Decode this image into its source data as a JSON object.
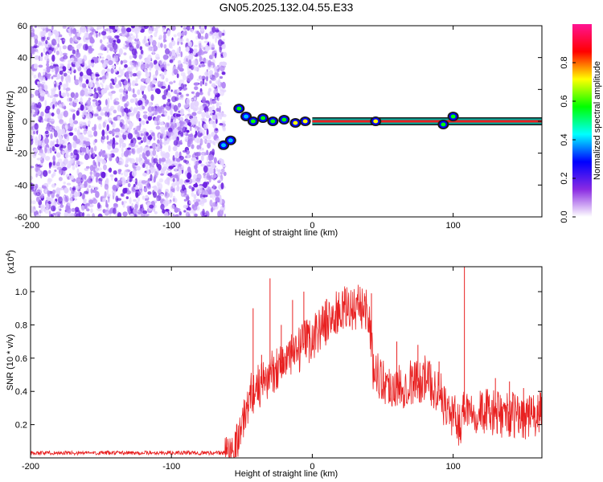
{
  "title": "GN05.2025.132.04.55.E33",
  "chart_data": [
    {
      "type": "heatmap",
      "xlabel": "Height of straight line (km)",
      "ylabel": "Frequency (Hz)",
      "xlim": [
        -200,
        163
      ],
      "ylim": [
        -60,
        60
      ],
      "xticks": [
        -200,
        -100,
        0,
        100
      ],
      "xtick_labels": [
        "-200",
        "-100",
        "0",
        "100"
      ],
      "yticks": [
        60,
        40,
        20,
        0,
        -20,
        -40,
        -60
      ],
      "ytick_labels": [
        "60",
        "40",
        "20",
        "0",
        "-20",
        "-40",
        "-60"
      ],
      "noise_region_x": [
        -200,
        -62
      ],
      "signal_line": {
        "frequency": 0,
        "x_start": 0,
        "x_end": 163
      },
      "signal_blobs": [
        {
          "x": -63,
          "y": -15,
          "amp": 0.4
        },
        {
          "x": -58,
          "y": -12,
          "amp": 0.45
        },
        {
          "x": -52,
          "y": 8,
          "amp": 0.5
        },
        {
          "x": -47,
          "y": 3,
          "amp": 0.45
        },
        {
          "x": -42,
          "y": 0,
          "amp": 0.6
        },
        {
          "x": -35,
          "y": 2,
          "amp": 0.55
        },
        {
          "x": -28,
          "y": 0,
          "amp": 0.6
        },
        {
          "x": -20,
          "y": 1,
          "amp": 0.65
        },
        {
          "x": -12,
          "y": -1,
          "amp": 0.7
        },
        {
          "x": -5,
          "y": 0,
          "amp": 0.75
        },
        {
          "x": 45,
          "y": 0,
          "amp": 0.7
        },
        {
          "x": 93,
          "y": -2,
          "amp": 0.5
        },
        {
          "x": 100,
          "y": 3,
          "amp": 0.55
        }
      ],
      "colorbar": {
        "label": "Normalized spectral amplitude",
        "ticks": [
          0.0,
          0.2,
          0.4,
          0.6,
          0.8
        ],
        "tick_labels": [
          "0.0",
          "0.2",
          "0.4",
          "0.6",
          "0.8"
        ],
        "range": [
          0,
          1
        ],
        "colormap": [
          "#ffffff",
          "#8a2be2",
          "#0000ff",
          "#00ffff",
          "#00ff00",
          "#ffff00",
          "#ff0000",
          "#ff1493"
        ]
      }
    },
    {
      "type": "line",
      "xlabel": "Height of straight line (km)",
      "ylabel": "SNR (10 * v/v)",
      "yscale_label": "(x10",
      "yscale_exp": "4",
      "yscale_close": ")",
      "xlim": [
        -200,
        163
      ],
      "ylim": [
        0.0,
        1.15
      ],
      "xticks": [
        -200,
        -100,
        0,
        100
      ],
      "xtick_labels": [
        "-200",
        "-100",
        "0",
        "100"
      ],
      "yticks": [
        0.2,
        0.4,
        0.6,
        0.8,
        1.0
      ],
      "ytick_labels": [
        "0.2",
        "0.4",
        "0.6",
        "0.8",
        "1.0"
      ],
      "series": [
        {
          "color": "#e82020",
          "x": [
            -200,
            -150,
            -100,
            -62,
            -55,
            -48,
            -44,
            -40,
            -36,
            -32,
            -28,
            -24,
            -20,
            -16,
            -12,
            -8,
            -4,
            0,
            5,
            10,
            15,
            20,
            25,
            30,
            35,
            40,
            43,
            46,
            50,
            55,
            60,
            65,
            70,
            75,
            80,
            85,
            90,
            95,
            100,
            105,
            108,
            112,
            118,
            125,
            132,
            140,
            148,
            156,
            163
          ],
          "values": [
            0.03,
            0.03,
            0.03,
            0.03,
            0.06,
            0.25,
            0.38,
            0.42,
            0.44,
            0.48,
            0.52,
            0.56,
            0.58,
            0.6,
            0.62,
            0.66,
            0.7,
            0.72,
            0.78,
            0.82,
            0.85,
            0.88,
            0.9,
            0.9,
            0.91,
            0.89,
            0.55,
            0.52,
            0.46,
            0.44,
            0.42,
            0.44,
            0.46,
            0.46,
            0.48,
            0.44,
            0.4,
            0.3,
            0.25,
            0.2,
            0.32,
            0.3,
            0.28,
            0.28,
            0.26,
            0.26,
            0.25,
            0.25,
            0.26
          ],
          "spikes": [
            {
              "x": -42,
              "y": 0.9
            },
            {
              "x": -36,
              "y": 0.62
            },
            {
              "x": -30,
              "y": 1.08
            },
            {
              "x": -22,
              "y": 0.8
            },
            {
              "x": -14,
              "y": 0.95
            },
            {
              "x": -6,
              "y": 1.0
            },
            {
              "x": 42,
              "y": 0.99
            },
            {
              "x": 60,
              "y": 0.7
            },
            {
              "x": 75,
              "y": 0.68
            },
            {
              "x": 90,
              "y": 0.58
            },
            {
              "x": 108,
              "y": 1.15
            },
            {
              "x": 130,
              "y": 0.48
            },
            {
              "x": 140,
              "y": 0.46
            },
            {
              "x": 150,
              "y": 0.42
            }
          ]
        }
      ]
    }
  ]
}
